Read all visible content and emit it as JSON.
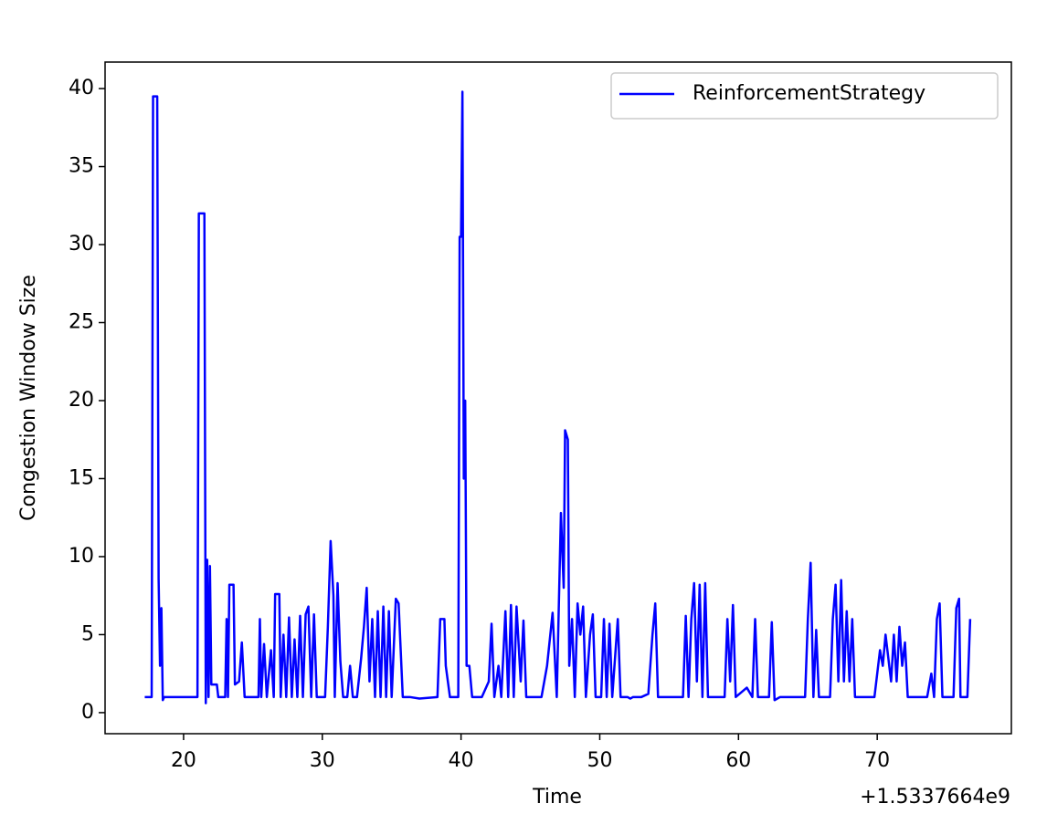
{
  "chart_data": {
    "type": "line",
    "xlabel": "Time",
    "ylabel": "Congestion Window Size",
    "x_offset_label": "+1.5337664e9",
    "xlim": [
      14.34,
      79.67
    ],
    "ylim": [
      -1.35,
      41.7
    ],
    "xticks": [
      20,
      30,
      40,
      50,
      60,
      70
    ],
    "yticks": [
      0,
      5,
      10,
      15,
      20,
      25,
      30,
      35,
      40
    ],
    "legend": "upper right",
    "x": [
      17.2,
      17.7,
      17.8,
      18.1,
      18.2,
      18.3,
      18.4,
      18.5,
      18.6,
      21,
      21.1,
      21.5,
      21.6,
      21.7,
      21.8,
      21.9,
      22,
      22.4,
      22.5,
      23,
      23.1,
      23.2,
      23.3,
      23.6,
      23.7,
      24,
      24.2,
      24.4,
      25.4,
      25.5,
      25.6,
      25.8,
      26,
      26.3,
      26.5,
      26.6,
      26.9,
      27,
      27.2,
      27.4,
      27.6,
      27.8,
      28,
      28.2,
      28.4,
      28.6,
      28.8,
      29,
      29.2,
      29.4,
      29.6,
      30.2,
      30.4,
      30.6,
      30.8,
      30.9,
      31.1,
      31.3,
      31.5,
      31.8,
      32,
      32.2,
      32.5,
      32.8,
      33,
      33.2,
      33.4,
      33.6,
      33.8,
      34,
      34.2,
      34.4,
      34.6,
      34.8,
      35,
      35.3,
      35.5,
      35.8,
      36.3,
      37,
      38.3,
      38.5,
      38.8,
      38.9,
      39.2,
      39.8,
      39.9,
      40,
      40.1,
      40.2,
      40.3,
      40.4,
      40.6,
      40.8,
      41.5,
      42,
      42.2,
      42.4,
      42.7,
      42.9,
      43.2,
      43.4,
      43.6,
      43.8,
      44,
      44.3,
      44.5,
      44.7,
      45.3,
      45.8,
      46.2,
      46.6,
      46.9,
      47.2,
      47.4,
      47.5,
      47.7,
      47.8,
      48,
      48.2,
      48.4,
      48.6,
      48.8,
      49,
      49.3,
      49.5,
      49.7,
      50.1,
      50.3,
      50.5,
      50.7,
      50.9,
      51.3,
      51.5,
      52,
      52.2,
      52.4,
      53,
      53.5,
      53.8,
      54,
      54.2,
      56,
      56.2,
      56.4,
      56.6,
      56.8,
      57,
      57.2,
      57.4,
      57.6,
      57.8,
      58.2,
      59,
      59.2,
      59.4,
      59.6,
      59.8,
      60.6,
      61,
      61.2,
      61.4,
      62.2,
      62.4,
      62.6,
      63,
      64.8,
      65,
      65.2,
      65.4,
      65.6,
      65.8,
      66,
      66.6,
      66.8,
      67,
      67.2,
      67.4,
      67.6,
      67.8,
      68,
      68.2,
      68.4,
      69.8,
      70.2,
      70.4,
      70.6,
      70.8,
      71,
      71.2,
      71.4,
      71.6,
      71.8,
      72,
      72.2,
      73,
      73.6,
      73.9,
      74.1,
      74.3,
      74.5,
      74.7,
      75.5,
      75.7,
      75.9,
      76,
      76.5,
      76.7
    ],
    "series": [
      {
        "name": "ReinforcementStrategy",
        "color": "#0000ff",
        "values": [
          1,
          1,
          39.5,
          39.5,
          8.6,
          3,
          6.7,
          0.8,
          1,
          1,
          32,
          32,
          0.6,
          9.8,
          1,
          9.4,
          1.8,
          1.8,
          1,
          1,
          6,
          1,
          8.2,
          8.2,
          1.8,
          2,
          4.5,
          1,
          1,
          6,
          1,
          4.4,
          1,
          4,
          1,
          7.6,
          7.6,
          1,
          5,
          1,
          6.1,
          1,
          4.7,
          1,
          6.2,
          1,
          6.3,
          6.8,
          1,
          6.3,
          1,
          1,
          5.5,
          11,
          7.5,
          1,
          8.3,
          3.3,
          1,
          1,
          3,
          1,
          1,
          3.5,
          5.5,
          8,
          2,
          6,
          1,
          6.5,
          1,
          6.8,
          1,
          6.5,
          1,
          7.3,
          7,
          1,
          1,
          0.9,
          1,
          6,
          6,
          3,
          1,
          1,
          30.5,
          30.5,
          39.8,
          15,
          20,
          3,
          3,
          1,
          1,
          2,
          5.7,
          1,
          3,
          1,
          6.5,
          1,
          6.9,
          1,
          6.8,
          2,
          5.9,
          1,
          1,
          1,
          3,
          6.4,
          1,
          12.8,
          8,
          18.1,
          17.5,
          3,
          6,
          1,
          7,
          5,
          6.8,
          1,
          5,
          6.3,
          1,
          1,
          6,
          1,
          5.7,
          1,
          6,
          1,
          1,
          0.9,
          1,
          1,
          1.2,
          5,
          7,
          1,
          1,
          6.2,
          1,
          6,
          8.3,
          2,
          8.2,
          1,
          8.3,
          1,
          1,
          1,
          6,
          2,
          6.9,
          1,
          1.6,
          1,
          6,
          1,
          1,
          5.8,
          0.8,
          1,
          1,
          6,
          9.6,
          1,
          5.3,
          1,
          1,
          1,
          6,
          8.2,
          2,
          8.5,
          2,
          6.5,
          2,
          6,
          1,
          1,
          4,
          3,
          5,
          3.5,
          2,
          5,
          2,
          5.5,
          3,
          4.5,
          1,
          1,
          1,
          2.5,
          1,
          6,
          7,
          1,
          1,
          6.7,
          7.3,
          1,
          1,
          6
        ]
      }
    ]
  }
}
